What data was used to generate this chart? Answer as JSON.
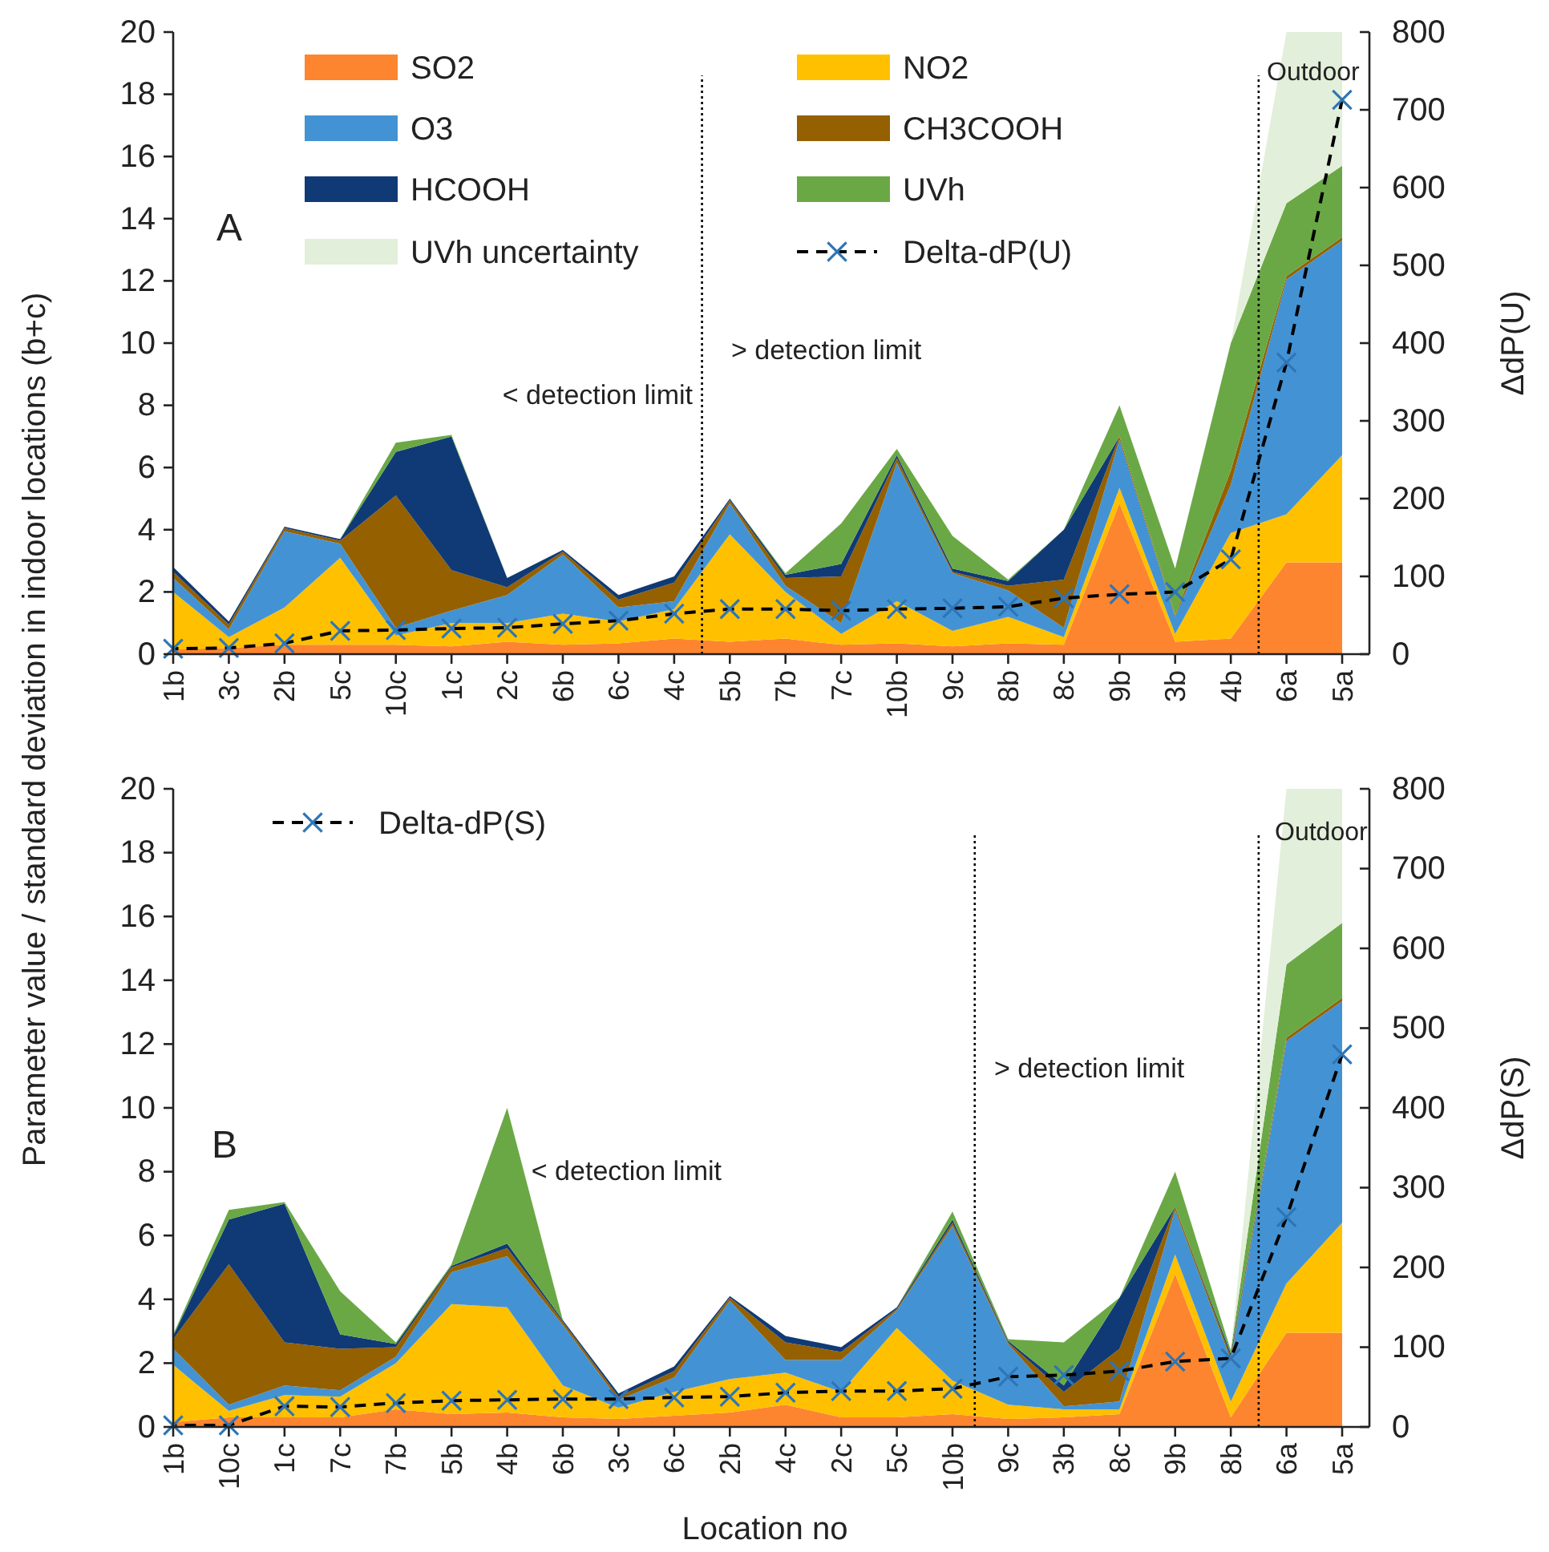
{
  "chart_data": [
    {
      "type": "area",
      "stacked": true,
      "ylabel": "Parameter value / standard deviation in indoor locations (b+c)",
      "y2label": "ΔdP(U)",
      "categories": [
        "1b",
        "3c",
        "2b",
        "5c",
        "10c",
        "1c",
        "2c",
        "6b",
        "6c",
        "4c",
        "5b",
        "7b",
        "7c",
        "10b",
        "9c",
        "8b",
        "8c",
        "9b",
        "3b",
        "4b",
        "6a",
        "5a"
      ],
      "ylim": [
        0,
        20
      ],
      "yticks": [
        0,
        2,
        4,
        6,
        8,
        10,
        12,
        14,
        16,
        18,
        20
      ],
      "y2lim": [
        0,
        800
      ],
      "y2ticks": [
        0,
        100,
        200,
        300,
        400,
        500,
        600,
        700,
        800
      ],
      "legend": "top",
      "grid": false,
      "series": [
        {
          "name": "SO2",
          "color": "#fd8530",
          "values": [
            0.15,
            0.2,
            0.3,
            0.3,
            0.3,
            0.25,
            0.4,
            0.3,
            0.35,
            0.5,
            0.4,
            0.5,
            0.3,
            0.35,
            0.25,
            0.35,
            0.3,
            4.85,
            0.4,
            0.5,
            2.95,
            2.95
          ]
        },
        {
          "name": "NO2",
          "color": "#ffc000",
          "values": [
            1.85,
            0.35,
            1.2,
            2.8,
            0.3,
            0.75,
            0.6,
            1.0,
            0.7,
            0.95,
            3.45,
            1.5,
            0.35,
            1.35,
            0.5,
            0.85,
            0.25,
            0.5,
            0.25,
            3.4,
            1.55,
            3.45
          ]
        },
        {
          "name": "O3",
          "color": "#4393d4",
          "values": [
            0.45,
            0.25,
            2.45,
            0.45,
            0.25,
            0.4,
            0.9,
            1.9,
            0.45,
            0.25,
            1.0,
            0.2,
            0.35,
            4.45,
            1.85,
            0.85,
            0.3,
            1.55,
            0.55,
            1.55,
            7.55,
            6.9
          ]
        },
        {
          "name": "CH3COOH",
          "color": "#946000",
          "values": [
            0.2,
            0.15,
            0.1,
            0.1,
            4.25,
            1.3,
            0.25,
            0.1,
            0.25,
            0.6,
            0.1,
            0.25,
            1.5,
            0.15,
            0.05,
            0.15,
            1.55,
            0.1,
            0.05,
            0.45,
            0.1,
            0.1
          ]
        },
        {
          "name": "HCOOH",
          "color": "#103a75",
          "values": [
            0.15,
            0.1,
            0.05,
            0.05,
            1.4,
            4.3,
            0.3,
            0.05,
            0.15,
            0.2,
            0.05,
            0.1,
            0.4,
            0.1,
            0.1,
            0.15,
            1.6,
            0,
            0,
            0,
            0,
            0
          ]
        },
        {
          "name": "UVh",
          "color": "#6aa845",
          "values": [
            0,
            0,
            0,
            0,
            0.3,
            0.05,
            0,
            0,
            0,
            0,
            0,
            0.05,
            1.3,
            0.2,
            1.05,
            0.05,
            0,
            1.0,
            1.5,
            4.1,
            2.35,
            2.3
          ]
        },
        {
          "name": "UVh uncertainty",
          "color": "#e2efda",
          "values": [
            null,
            null,
            null,
            null,
            null,
            null,
            null,
            null,
            null,
            null,
            null,
            null,
            null,
            null,
            null,
            null,
            null,
            null,
            null,
            0,
            5.5,
            4.3
          ]
        },
        {
          "name": "Delta-dP(U)",
          "type": "line",
          "axis": "y2",
          "color": "#000000",
          "line_style": "dashed",
          "marker": "cross",
          "values": [
            7,
            8,
            14,
            30,
            31,
            33,
            34,
            39,
            43,
            52,
            58,
            58,
            56,
            58,
            59,
            61,
            72,
            77,
            80,
            122,
            375,
            713
          ]
        }
      ],
      "annotations": [
        "A",
        "< detection limit",
        "> detection limit",
        "Outdoor"
      ]
    },
    {
      "type": "area",
      "stacked": true,
      "xlabel": "Location no",
      "y2label": "ΔdP(S)",
      "categories": [
        "1b",
        "10c",
        "1c",
        "7c",
        "7b",
        "5b",
        "4b",
        "6b",
        "3c",
        "6c",
        "2b",
        "4c",
        "2c",
        "5c",
        "10b",
        "9c",
        "3b",
        "8c",
        "9b",
        "8b",
        "6a",
        "5a"
      ],
      "ylim": [
        0,
        20
      ],
      "yticks": [
        0,
        2,
        4,
        6,
        8,
        10,
        12,
        14,
        16,
        18,
        20
      ],
      "y2lim": [
        0,
        800
      ],
      "y2ticks": [
        0,
        100,
        200,
        300,
        400,
        500,
        600,
        700,
        800
      ],
      "legend": "top left",
      "grid": false,
      "series": [
        {
          "color": "#fd8530",
          "values": [
            0.15,
            0.3,
            0.3,
            0.3,
            0.55,
            0.4,
            0.45,
            0.3,
            0.25,
            0.35,
            0.45,
            0.7,
            0.3,
            0.3,
            0.4,
            0.25,
            0.3,
            0.4,
            4.8,
            0.3,
            2.95,
            2.95
          ]
        },
        {
          "color": "#ffc000",
          "values": [
            1.8,
            0.2,
            0.7,
            0.65,
            1.45,
            3.45,
            3.3,
            1.0,
            0.35,
            0.75,
            1.05,
            1.0,
            0.8,
            2.8,
            1.05,
            0.45,
            0.25,
            0.15,
            0.6,
            0.5,
            1.55,
            3.45
          ]
        },
        {
          "color": "#4393d4",
          "values": [
            0.5,
            0.2,
            0.3,
            0.2,
            0.2,
            1.0,
            1.6,
            1.9,
            0.25,
            0.45,
            2.45,
            0.4,
            1.0,
            0.55,
            4.85,
            1.9,
            0.1,
            0.25,
            1.4,
            1.3,
            7.6,
            6.95
          ]
        },
        {
          "color": "#946000",
          "values": [
            0.3,
            4.4,
            1.35,
            1.3,
            0.3,
            0.15,
            0.25,
            0.1,
            0.1,
            0.2,
            0.1,
            0.55,
            0.25,
            0.05,
            0.1,
            0.05,
            0.45,
            1.65,
            0.1,
            0.1,
            0.1,
            0.1
          ]
        },
        {
          "color": "#103a75",
          "values": [
            0.1,
            1.4,
            4.35,
            0.45,
            0.1,
            0.05,
            0.15,
            0.05,
            0.1,
            0.15,
            0.05,
            0.2,
            0.15,
            0.05,
            0.1,
            0.05,
            0.2,
            1.6,
            0,
            0.1,
            0,
            0
          ]
        },
        {
          "color": "#6aa845",
          "values": [
            0.05,
            0.3,
            0.05,
            1.35,
            0.05,
            0.05,
            4.25,
            0,
            0,
            0,
            0,
            0,
            0,
            0,
            0.25,
            0.05,
            1.35,
            0,
            1.1,
            0.1,
            2.3,
            2.35
          ]
        },
        {
          "color": "#e2efda",
          "values": [
            null,
            null,
            null,
            null,
            null,
            null,
            null,
            null,
            null,
            null,
            null,
            null,
            null,
            null,
            null,
            null,
            null,
            null,
            null,
            0,
            5.5,
            4.2
          ]
        },
        {
          "name": "Delta-dP(S)",
          "type": "line",
          "axis": "y2",
          "color": "#000000",
          "line_style": "dashed",
          "marker": "cross",
          "values": [
            2,
            2,
            26,
            25,
            30,
            33,
            34,
            35,
            35,
            37,
            38,
            43,
            45,
            45,
            48,
            63,
            65,
            70,
            82,
            86,
            263,
            467
          ]
        }
      ],
      "annotations": [
        "B",
        "< detection limit",
        "> detection limit",
        "Outdoor"
      ]
    }
  ]
}
